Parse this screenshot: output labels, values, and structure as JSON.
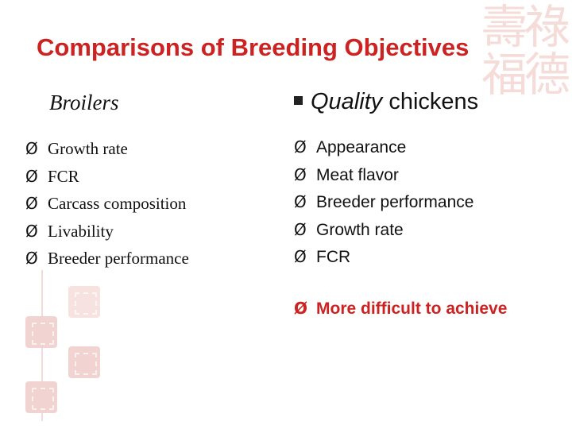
{
  "title": "Comparisons of Breeding Objectives",
  "left_column": {
    "heading": "Broilers",
    "items": [
      "Growth rate",
      "FCR",
      "Carcass composition",
      "Livability",
      "Breeder performance"
    ]
  },
  "right_column": {
    "heading_italic": "Quality",
    "heading_rest": " chickens",
    "items": [
      "Appearance",
      "Meat flavor",
      "Breeder performance",
      "Growth rate",
      "FCR"
    ]
  },
  "note": "More difficult to achieve",
  "bullet_glyph": "Ø",
  "colors": {
    "title": "#cc2222",
    "text": "#111111",
    "decoration": "#f1d4d1"
  },
  "icons": {
    "heading_bullet": "square-bullet-icon",
    "list_bullet": "arrowhead-bullet-icon"
  }
}
